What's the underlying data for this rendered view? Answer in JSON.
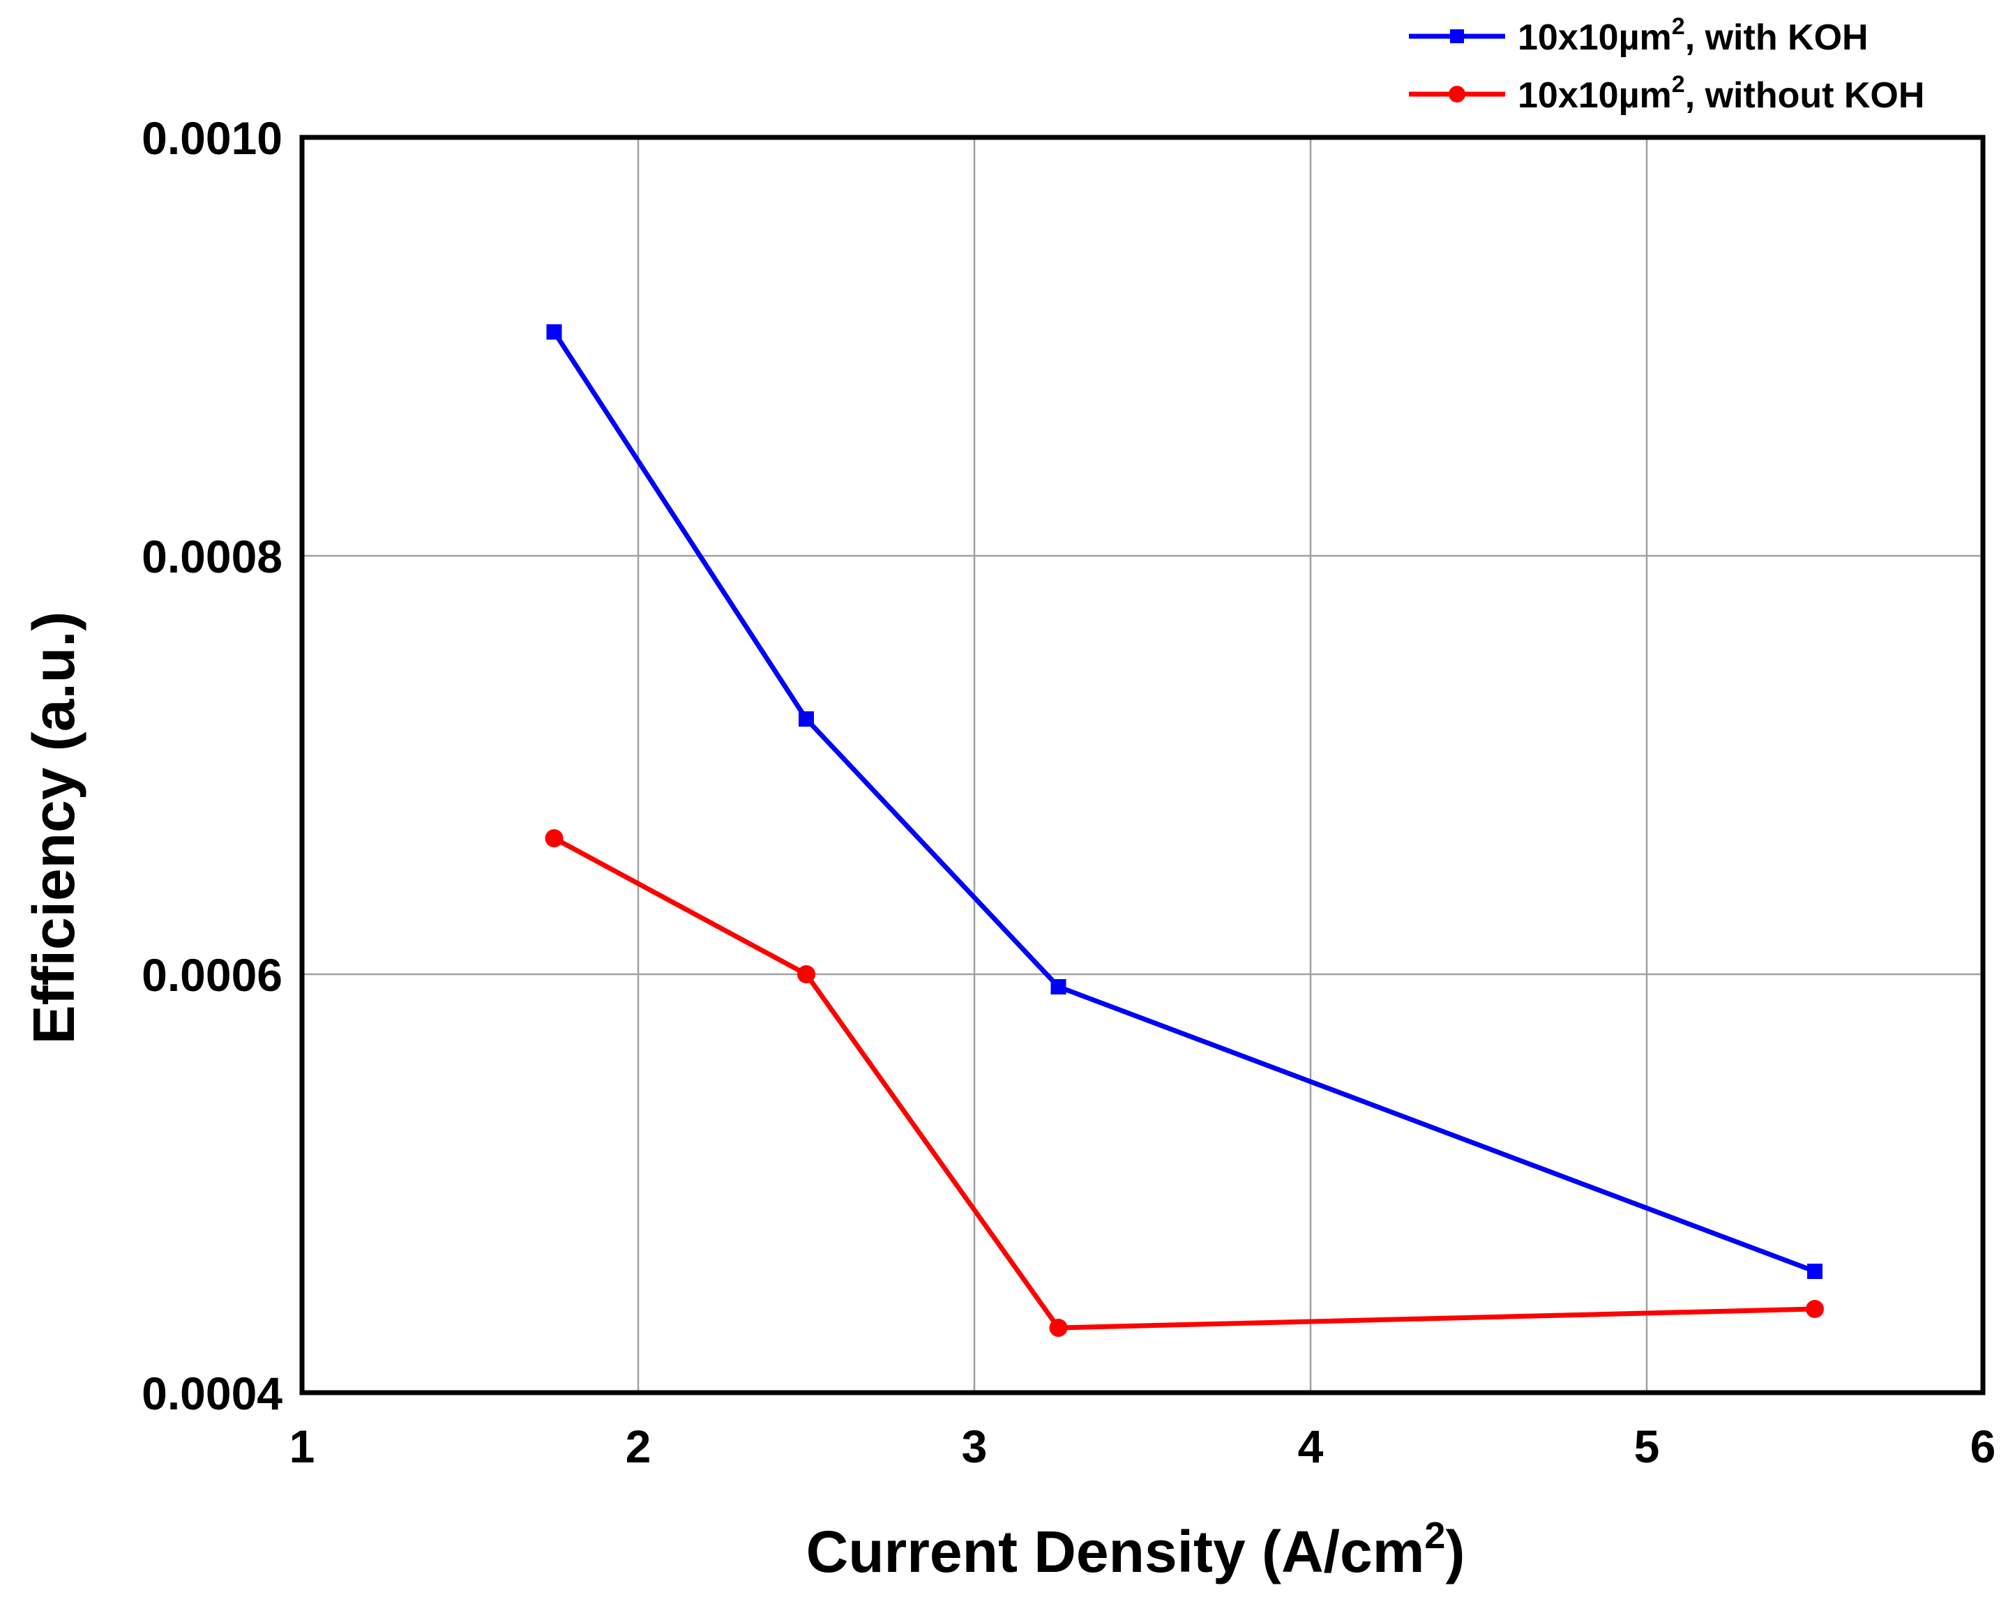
{
  "chart_data": {
    "type": "line",
    "xlabel": "Current Density (A/cm",
    "xlabel_sup": "2",
    "xlabel_close": ")",
    "ylabel": "Efficiency (a.u.)",
    "xlim": [
      1,
      6
    ],
    "ylim": [
      0.0004,
      0.001
    ],
    "x_ticks": [
      1,
      2,
      3,
      4,
      5,
      6
    ],
    "x_tick_labels": [
      "1",
      "2",
      "3",
      "4",
      "5",
      "6"
    ],
    "y_ticks": [
      0.0004,
      0.0006,
      0.0008,
      0.001
    ],
    "y_tick_labels": [
      "0.0004",
      "0.0006",
      "0.0008",
      "0.0010"
    ],
    "grid": true,
    "legend_position": "top-right, outside plot",
    "series": [
      {
        "name_main": "10x10µm",
        "name_sup": "2",
        "name_tail": ", with KOH",
        "color": "#0000ff",
        "marker": "square",
        "x": [
          1.75,
          2.5,
          3.25,
          5.5
        ],
        "y": [
          0.000907,
          0.000722,
          0.000594,
          0.000458
        ]
      },
      {
        "name_main": "10x10µm",
        "name_sup": "2",
        "name_tail": ", without KOH",
        "color": "#ff0000",
        "marker": "circle",
        "x": [
          1.75,
          2.5,
          3.25,
          5.5
        ],
        "y": [
          0.000665,
          0.0006,
          0.000431,
          0.00044
        ]
      }
    ]
  }
}
